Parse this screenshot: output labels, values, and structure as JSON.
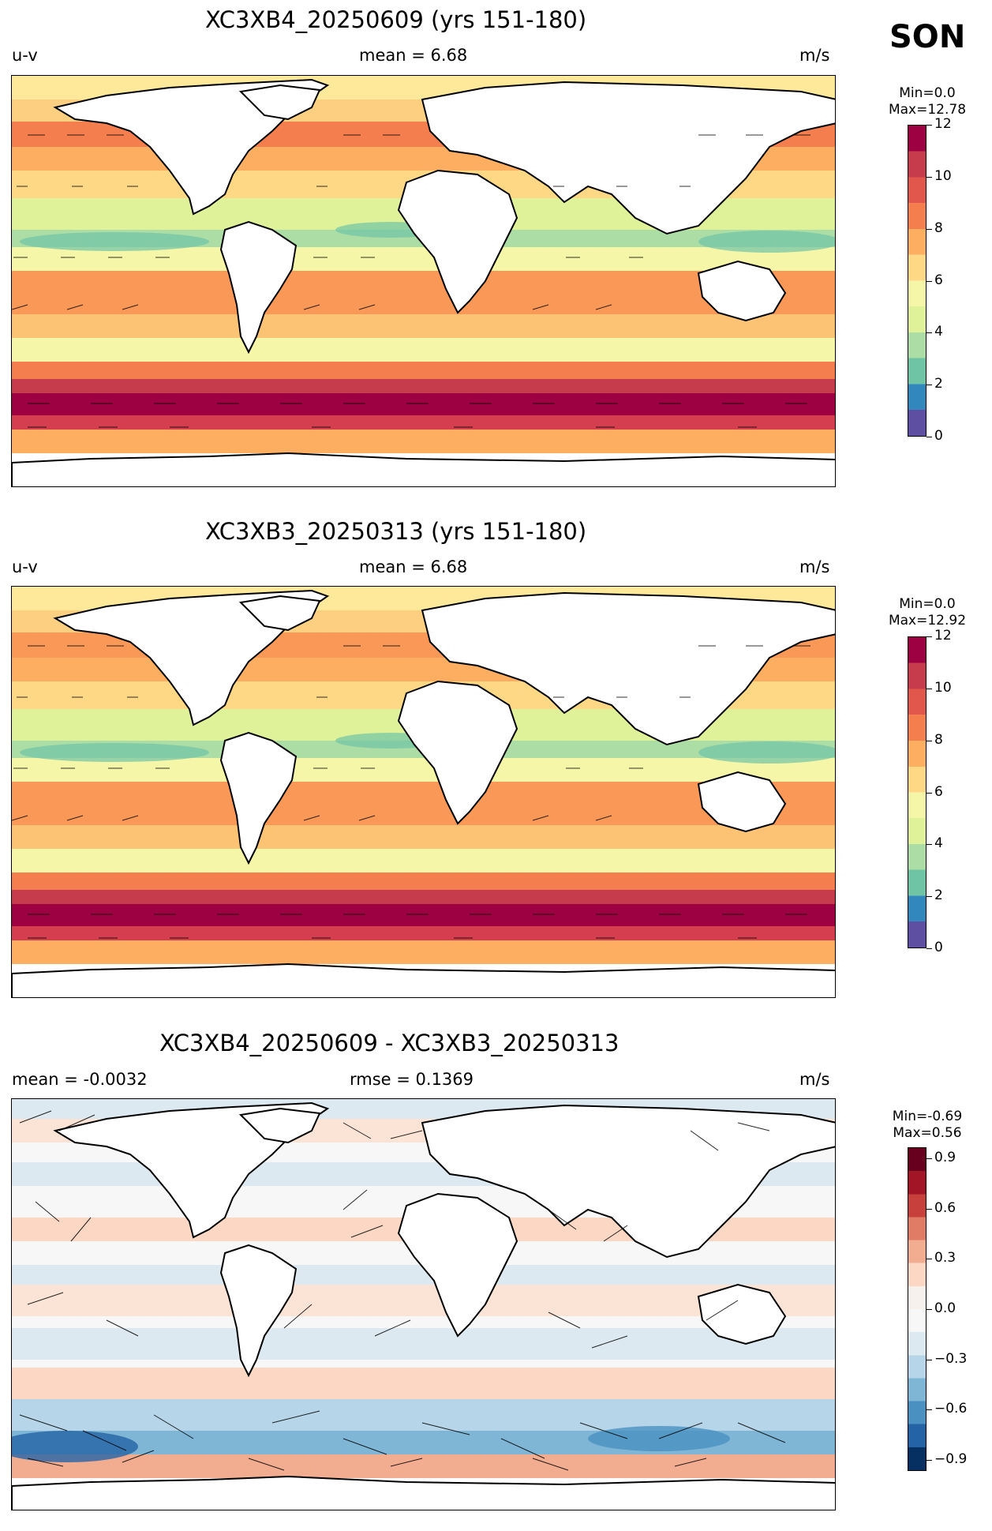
{
  "season": "SON",
  "colorbar_label": "m/s",
  "panels": [
    {
      "title": "XC3XB4_20250609 (yrs 151-180)",
      "left": "u-v",
      "center": "mean = 6.68",
      "right": "m/s",
      "min_label": "Min=0.0",
      "max_label": "Max=12.78",
      "cbar_ticks": [
        "12",
        "10",
        "8",
        "6",
        "4",
        "2",
        "0"
      ],
      "cbar_colors": [
        "#9e0142",
        "#c63c4d",
        "#e2574b",
        "#f47e4e",
        "#fdae61",
        "#fed885",
        "#f6f6a9",
        "#dff299",
        "#abdda4",
        "#6fc4a6",
        "#3288bd",
        "#5e4fa2"
      ]
    },
    {
      "title": "XC3XB3_20250313 (yrs 151-180)",
      "left": "u-v",
      "center": "mean = 6.68",
      "right": "m/s",
      "min_label": "Min=0.0",
      "max_label": "Max=12.92",
      "cbar_ticks": [
        "12",
        "10",
        "8",
        "6",
        "4",
        "2",
        "0"
      ],
      "cbar_colors": [
        "#9e0142",
        "#c63c4d",
        "#e2574b",
        "#f47e4e",
        "#fdae61",
        "#fed885",
        "#f6f6a9",
        "#dff299",
        "#abdda4",
        "#6fc4a6",
        "#3288bd",
        "#5e4fa2"
      ]
    },
    {
      "title": "XC3XB4_20250609 - XC3XB3_20250313",
      "left": "mean = -0.0032",
      "center": "rmse = 0.1369",
      "right": "m/s",
      "min_label": "Min=-0.69",
      "max_label": "Max=0.56",
      "cbar_ticks": [
        "0.9",
        "0.6",
        "0.3",
        "0.0",
        "−0.3",
        "−0.6",
        "−0.9"
      ],
      "cbar_colors": [
        "#67001f",
        "#a11527",
        "#c8403b",
        "#e07b65",
        "#f2ac90",
        "#fbd7c4",
        "#f7f1ee",
        "#f7f7f7",
        "#dde9f1",
        "#b6d5e8",
        "#7fb6d6",
        "#4a91c2",
        "#2464a6",
        "#053061"
      ]
    }
  ]
}
